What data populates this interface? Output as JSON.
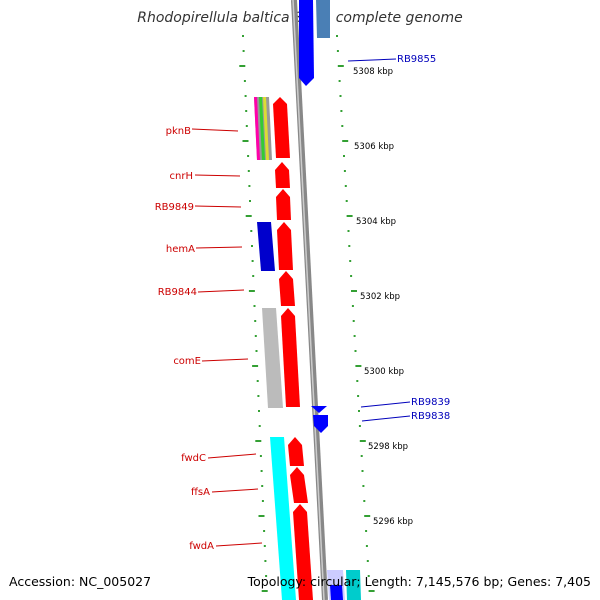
{
  "title": "Rhodopirellula baltica SH 1, complete genome",
  "footer": {
    "accession": "Accession: NC_005027",
    "summary": "Topology: circular; Length: 7,145,576 bp; Genes: 7,405"
  },
  "scale_labels": [
    "5308 kbp",
    "5306 kbp",
    "5304 kbp",
    "5302 kbp",
    "5300 kbp",
    "5298 kbp",
    "5296 kbp"
  ],
  "gene_labels": [
    {
      "text": "RB9855",
      "color": "#0000bb"
    },
    {
      "text": "pknB",
      "color": "#cc0000"
    },
    {
      "text": "cnrH",
      "color": "#cc0000"
    },
    {
      "text": "RB9849",
      "color": "#cc0000"
    },
    {
      "text": "hemA",
      "color": "#cc0000"
    },
    {
      "text": "RB9844",
      "color": "#cc0000"
    },
    {
      "text": "comE",
      "color": "#cc0000"
    },
    {
      "text": "RB9839",
      "color": "#0000bb"
    },
    {
      "text": "RB9838",
      "color": "#0000bb"
    },
    {
      "text": "fwdC",
      "color": "#cc0000"
    },
    {
      "text": "ffsA",
      "color": "#cc0000"
    },
    {
      "text": "fwdA",
      "color": "#cc0000"
    }
  ],
  "colors": {
    "forward_gene": "#ff0000",
    "reverse_gene": "#0000ff",
    "backbone": "#888888",
    "tick": "#008800",
    "cog_cyan": "#00ffff",
    "cog_gray": "#bbbbbb",
    "cog_blue": "#0000cc"
  }
}
